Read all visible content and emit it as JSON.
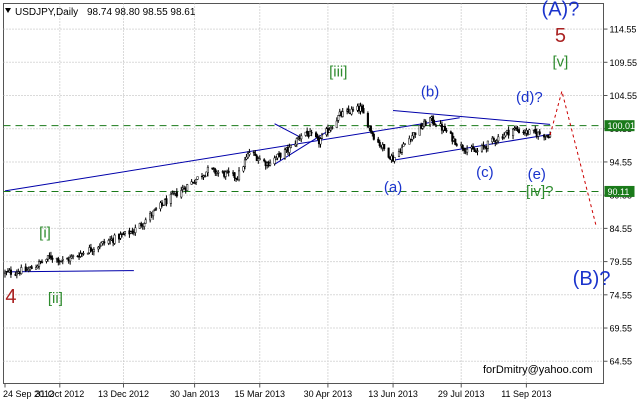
{
  "header": {
    "symbol_timeframe": "USDJPY,Daily",
    "ohlc": "98.74 98.80 98.55 98.61"
  },
  "watermark": "forDmitry@yahoo.com",
  "chart_data": {
    "type": "candlestick",
    "symbol": "USDJPY",
    "timeframe": "Daily",
    "last_bar": {
      "open": 98.74,
      "high": 98.8,
      "low": 98.55,
      "close": 98.61
    },
    "ylim": [
      61.2,
      118.4
    ],
    "grid": true,
    "y_ticks": [
      "114.55",
      "109.55",
      "104.55",
      "99.55",
      "94.55",
      "89.55",
      "84.55",
      "79.55",
      "74.55",
      "69.55",
      "64.55"
    ],
    "x_ticks": [
      "24 Sep 2012",
      "31 Oct 2012",
      "13 Dec 2012",
      "30 Jan 2013",
      "15 Mar 2013",
      "30 Apr 2013",
      "13 Jun 2013",
      "29 Jul 2013",
      "11 Sep 2013"
    ],
    "x_range": [
      "2012-09-24",
      "2013-10-28"
    ],
    "price_path": [
      [
        "2012-09-24",
        77.8
      ],
      [
        "2012-10-10",
        78.3
      ],
      [
        "2012-10-25",
        80.3
      ],
      [
        "2012-11-03",
        79.6
      ],
      [
        "2012-11-28",
        82.2
      ],
      [
        "2012-12-20",
        84.2
      ],
      [
        "2013-01-10",
        88.5
      ],
      [
        "2013-02-08",
        93.3
      ],
      [
        "2013-02-28",
        92.3
      ],
      [
        "2013-03-08",
        96.0
      ],
      [
        "2013-03-20",
        94.3
      ],
      [
        "2013-04-04",
        96.5
      ],
      [
        "2013-04-14",
        99.2
      ],
      [
        "2013-04-24",
        97.6
      ],
      [
        "2013-05-08",
        101.6
      ],
      [
        "2013-05-22",
        102.6
      ],
      [
        "2013-06-01",
        98.0
      ],
      [
        "2013-06-13",
        95.0
      ],
      [
        "2013-06-25",
        98.4
      ],
      [
        "2013-07-08",
        101.0
      ],
      [
        "2013-07-18",
        99.3
      ],
      [
        "2013-07-28",
        97.0
      ],
      [
        "2013-08-08",
        96.0
      ],
      [
        "2013-08-20",
        97.8
      ],
      [
        "2013-09-02",
        99.5
      ],
      [
        "2013-09-11",
        99.0
      ],
      [
        "2013-09-20",
        98.8
      ],
      [
        "2013-09-27",
        98.6
      ]
    ],
    "horizontal_levels": [
      {
        "value": 100.01,
        "label": "100.01",
        "style": "dashed",
        "color": "#1a7a1a"
      },
      {
        "value": 90.11,
        "label": "90.11",
        "style": "dashed",
        "color": "#1a7a1a"
      }
    ],
    "trendlines": [
      {
        "from": [
          "2012-09-24",
          90.2
        ],
        "to": [
          "2013-07-28",
          101.2
        ],
        "color": "#0000aa"
      },
      {
        "from": [
          "2012-09-24",
          78.0
        ],
        "to": [
          "2012-12-20",
          78.2
        ],
        "color": "#0000aa"
      },
      {
        "from": [
          "2013-03-25",
          94.2
        ],
        "to": [
          "2013-04-30",
          99.2
        ],
        "color": "#0000aa"
      },
      {
        "from": [
          "2013-03-25",
          100.3
        ],
        "to": [
          "2013-04-12",
          98.2
        ],
        "color": "#0000aa"
      },
      {
        "from": [
          "2013-06-13",
          94.8
        ],
        "to": [
          "2013-09-27",
          98.7
        ],
        "color": "#0000aa"
      },
      {
        "from": [
          "2013-06-13",
          102.3
        ],
        "to": [
          "2013-09-27",
          100.2
        ],
        "color": "#0000aa"
      }
    ],
    "projection": {
      "color": "#cc0000",
      "style": "dotted",
      "points": [
        [
          "2013-09-27",
          98.6
        ],
        [
          "2013-10-05",
          105.2
        ],
        [
          "2013-10-28",
          85.0
        ]
      ]
    },
    "wave_labels": [
      {
        "text": "(A)?",
        "date": "2013-10-04",
        "price": 116.6,
        "color": "#1a33cc",
        "size": 20
      },
      {
        "text": "5",
        "date": "2013-10-04",
        "price": 112.6,
        "color": "#aa2222",
        "size": 20
      },
      {
        "text": "[v]",
        "date": "2013-10-04",
        "price": 108.9,
        "color": "#2e8b2e",
        "size": 15
      },
      {
        "text": "[iii]",
        "date": "2013-05-07",
        "price": 107.4,
        "color": "#2e8b2e",
        "size": 15
      },
      {
        "text": "(b)",
        "date": "2013-07-08",
        "price": 104.4,
        "color": "#1a33cc",
        "size": 15
      },
      {
        "text": "(d)?",
        "date": "2013-09-13",
        "price": 103.6,
        "color": "#1a33cc",
        "size": 15
      },
      {
        "text": "(e)",
        "date": "2013-09-18",
        "price": 92.0,
        "color": "#1a33cc",
        "size": 15
      },
      {
        "text": "[iv]?",
        "date": "2013-09-20",
        "price": 89.4,
        "color": "#2e8b2e",
        "size": 15
      },
      {
        "text": "(a)",
        "date": "2013-06-13",
        "price": 90.0,
        "color": "#1a33cc",
        "size": 15
      },
      {
        "text": "(c)",
        "date": "2013-08-14",
        "price": 92.3,
        "color": "#1a33cc",
        "size": 15
      },
      {
        "text": "[i]",
        "date": "2012-10-21",
        "price": 83.2,
        "color": "#2e8b2e",
        "size": 15
      },
      {
        "text": "[ii]",
        "date": "2012-10-28",
        "price": 73.3,
        "color": "#2e8b2e",
        "size": 15
      },
      {
        "text": "4",
        "date": "2012-09-28",
        "price": 73.3,
        "color": "#aa2222",
        "size": 20
      },
      {
        "text": "(B)?",
        "date": "2013-10-25",
        "price": 76.0,
        "color": "#1a33cc",
        "size": 20
      }
    ]
  },
  "colors": {
    "background": "#ffffff",
    "grid": "#b4b4b4",
    "candles": "#000000",
    "level_line": "#1a7a1a",
    "level_badge": "#1a7a1a"
  }
}
